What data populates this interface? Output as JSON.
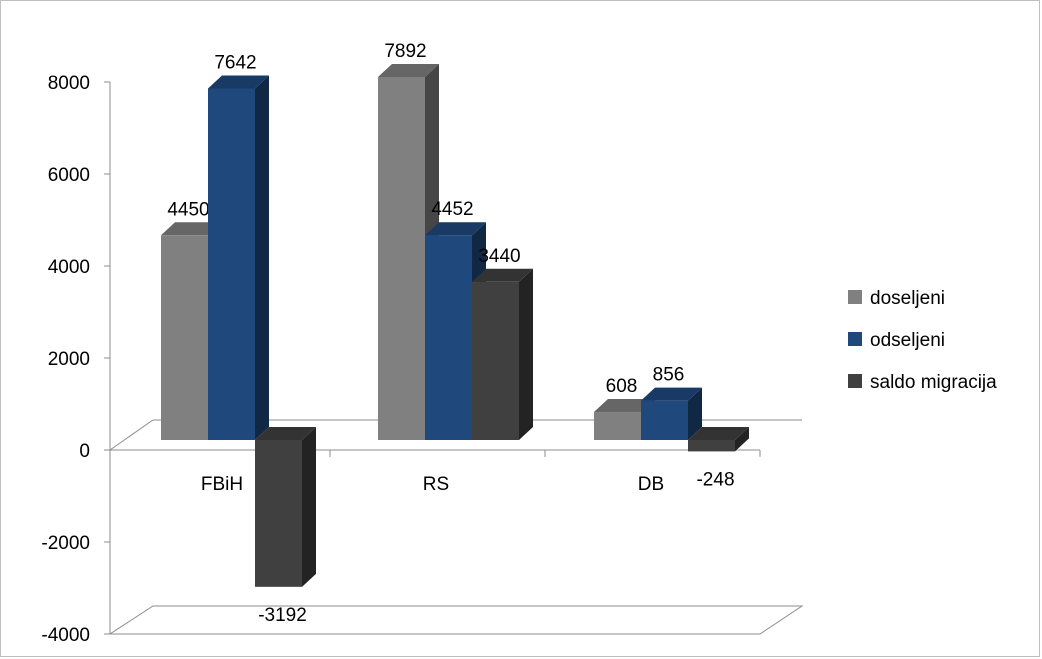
{
  "chart_data": {
    "type": "bar",
    "style": "3d-clustered-column",
    "categories": [
      "FBiH",
      "RS",
      "DB"
    ],
    "series": [
      {
        "name": "doseljeni",
        "values": [
          4450,
          7892,
          608
        ],
        "color": "#808080"
      },
      {
        "name": "odseljeni",
        "values": [
          7642,
          4452,
          856
        ],
        "color": "#1f497d"
      },
      {
        "name": "saldo migracija",
        "values": [
          -3192,
          3440,
          -248
        ],
        "color": "#404040"
      }
    ],
    "data_labels": [
      [
        "4450",
        "7892",
        "608"
      ],
      [
        "7642",
        "4452",
        "856"
      ],
      [
        "-3192",
        "3440",
        "-248"
      ]
    ],
    "ylim": [
      -4000,
      8000
    ],
    "yticks": [
      "8000",
      "6000",
      "4000",
      "2000",
      "0",
      "-2000",
      "-4000"
    ],
    "grid": false,
    "legend_position": "right",
    "title": "",
    "xlabel": "",
    "ylabel": ""
  }
}
